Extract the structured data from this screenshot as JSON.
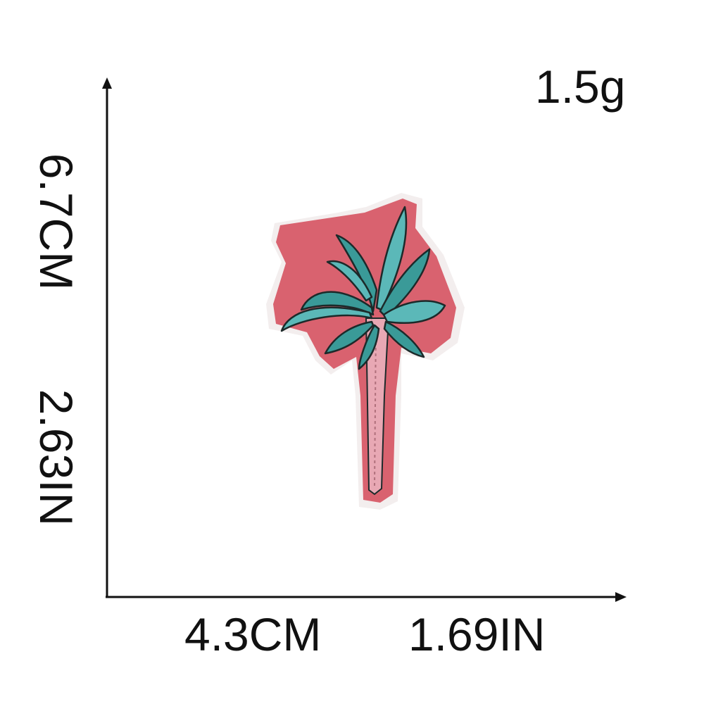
{
  "dimensions": {
    "height_cm": "6.7CM",
    "height_in": "2.63IN",
    "width_cm": "4.3CM",
    "width_in": "1.69IN",
    "weight": "1.5g"
  },
  "product": {
    "icon": "palm-tree-patch",
    "colors": {
      "border": "#d9626f",
      "leaves": "#3a9a98",
      "leaves_light": "#5bb8b8",
      "trunk": "#e8a8b4",
      "outline": "#1c2a2a",
      "backing": "#f3eeee"
    }
  }
}
